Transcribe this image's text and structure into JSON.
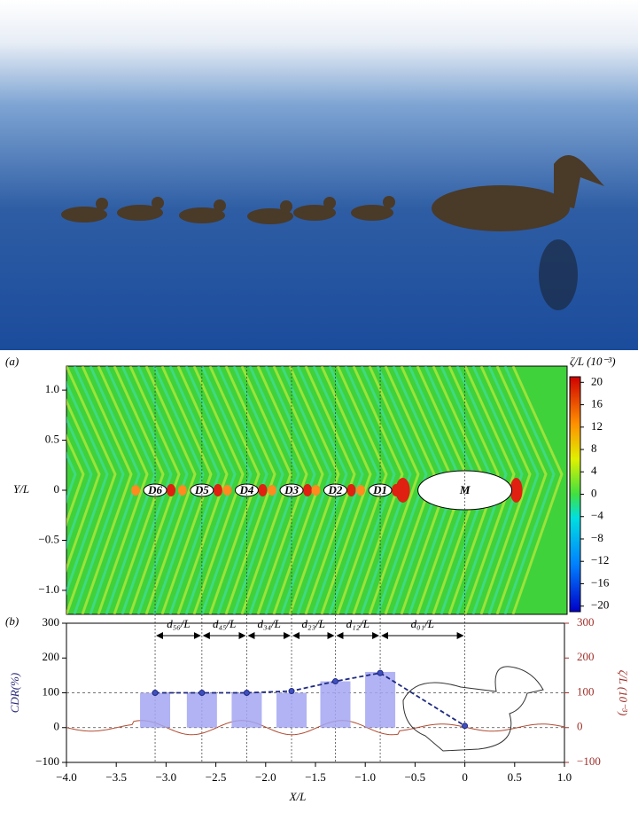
{
  "chart_data": [
    {
      "type": "heatmap",
      "panel_label": "(a)",
      "ylabel": "Y/L",
      "xlim": [
        -4,
        1
      ],
      "ylim": [
        -1.24,
        1.24
      ],
      "yticks": [
        {
          "value": 1,
          "label": "1.0"
        },
        0.5,
        0,
        {
          "value": -0.5,
          "label": "−0.5"
        },
        {
          "value": -1,
          "label": "−1.0"
        }
      ],
      "colorbar_label": "ζ/L (10⁻³)",
      "clim": [
        -21,
        21
      ],
      "cticks": [
        20,
        16,
        12,
        8,
        4,
        0,
        {
          "value": -4,
          "label": "−4"
        },
        {
          "value": -8,
          "label": "−8"
        },
        {
          "value": -12,
          "label": "−12"
        },
        {
          "value": -16,
          "label": "−16"
        },
        {
          "value": -20,
          "label": "−20"
        }
      ],
      "bodies": [
        {
          "label": "D6",
          "x": -3.11
        },
        {
          "label": "D5",
          "x": -2.64
        },
        {
          "label": "D4",
          "x": -2.19
        },
        {
          "label": "D3",
          "x": -1.74
        },
        {
          "label": "D2",
          "x": -1.3
        },
        {
          "label": "D1",
          "x": -0.85
        },
        {
          "label": "M",
          "x": 0
        }
      ]
    },
    {
      "type": "bar",
      "panel_label": "(b)",
      "xlabel": "X/L",
      "ylabel": "CDR(%)",
      "y2label": "ζ/L (10⁻³)",
      "xlim": [
        -4,
        1
      ],
      "xticks": [
        {
          "value": -4,
          "label": "−4.0"
        },
        {
          "value": -3.5,
          "label": "−3.5"
        },
        {
          "value": -3,
          "label": "−3.0"
        },
        {
          "value": -2.5,
          "label": "−2.5"
        },
        {
          "value": -2,
          "label": "−2.0"
        },
        {
          "value": -1.5,
          "label": "−1.5"
        },
        {
          "value": -1,
          "label": "−1.0"
        },
        {
          "value": -0.5,
          "label": "−0.5"
        },
        0,
        0.5,
        {
          "value": 1,
          "label": "1.0"
        }
      ],
      "ylim": [
        -100,
        300
      ],
      "yticks": [
        300,
        200,
        100,
        0,
        {
          "value": -100,
          "label": "−100"
        }
      ],
      "y2lim": [
        -100,
        300
      ],
      "y2ticks": [
        300,
        200,
        100,
        0,
        {
          "value": -100,
          "label": "−100"
        }
      ],
      "ref_lines": [
        100,
        0
      ],
      "spacings": [
        {
          "label": "d₅₆/L",
          "from": -3.11,
          "to": -2.64
        },
        {
          "label": "d₄₅/L",
          "from": -2.64,
          "to": -2.19
        },
        {
          "label": "d₃₄/L",
          "from": -2.19,
          "to": -1.74
        },
        {
          "label": "d₂₃/L",
          "from": -1.74,
          "to": -1.3
        },
        {
          "label": "d₁₂/L",
          "from": -1.3,
          "to": -0.85
        },
        {
          "label": "d₀₁/L",
          "from": -0.85,
          "to": 0
        }
      ],
      "series": [
        {
          "type": "bar",
          "color": "#a3a6f2",
          "x": [
            -3.11,
            -2.64,
            -2.19,
            -1.74,
            -1.3,
            -0.85
          ],
          "values": [
            100,
            100,
            100,
            100,
            133,
            160
          ]
        },
        {
          "type": "line",
          "color": "#1f2a80",
          "x": [
            -3.11,
            -2.64,
            -2.19,
            -1.74,
            -1.3,
            -0.85,
            0
          ],
          "values": [
            100,
            100,
            100,
            105,
            133,
            157,
            5
          ]
        }
      ]
    }
  ]
}
